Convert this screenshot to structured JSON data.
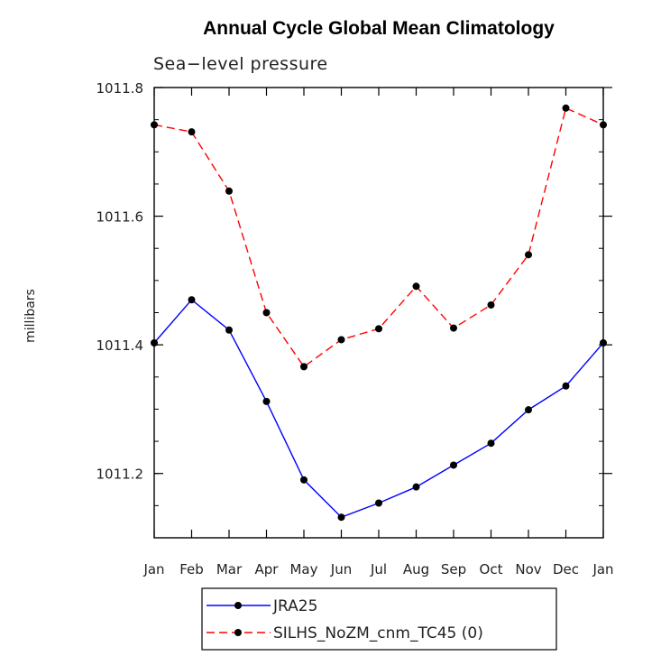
{
  "chart_data": {
    "type": "line",
    "title": "Annual Cycle Global Mean Climatology",
    "subtitle": "Sea−level pressure",
    "ylabel": "millibars",
    "xlabel": "",
    "categories": [
      "Jan",
      "Feb",
      "Mar",
      "Apr",
      "May",
      "Jun",
      "Jul",
      "Aug",
      "Sep",
      "Oct",
      "Nov",
      "Dec",
      "Jan"
    ],
    "ylim": [
      1011.1,
      1011.8
    ],
    "yticks_major": [
      1011.2,
      1011.4,
      1011.6,
      1011.8
    ],
    "ytick_labels": [
      "1011.2",
      "1011.4",
      "1011.6",
      "1011.8"
    ],
    "yticks_minor_step": 0.05,
    "series": [
      {
        "name": "JRA25",
        "color": "#0000ff",
        "dash": "solid",
        "values": [
          1011.403,
          1011.47,
          1011.423,
          1011.312,
          1011.19,
          1011.132,
          1011.154,
          1011.179,
          1011.213,
          1011.247,
          1011.299,
          1011.336,
          1011.403
        ]
      },
      {
        "name": "SILHS_NoZM_cnm_TC45 (0)",
        "color": "#ff0000",
        "dash": "dashed",
        "values": [
          1011.742,
          1011.731,
          1011.639,
          1011.45,
          1011.366,
          1011.408,
          1011.425,
          1011.491,
          1011.426,
          1011.462,
          1011.54,
          1011.768,
          1011.742
        ]
      }
    ],
    "legend_position": "bottom-center",
    "grid": false
  }
}
